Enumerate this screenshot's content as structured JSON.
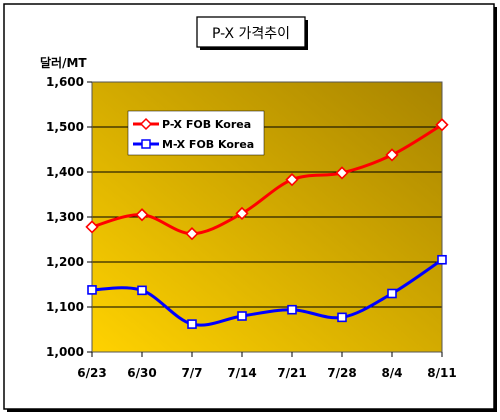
{
  "chart_data": {
    "type": "line",
    "title": "P-X 가격추이",
    "unit_label": "달러/MT",
    "categories": [
      "6/23",
      "6/30",
      "7/7",
      "7/14",
      "7/21",
      "7/28",
      "8/4",
      "8/11"
    ],
    "ylim": [
      1000,
      1600
    ],
    "yticks": [
      1000,
      1100,
      1200,
      1300,
      1400,
      1500,
      1600
    ],
    "ytick_labels": [
      "1,000",
      "1,100",
      "1,200",
      "1,300",
      "1,400",
      "1,500",
      "1,600"
    ],
    "grid": true,
    "legend_position": "top-left",
    "series": [
      {
        "name": "P-X FOB Korea",
        "color": "#ff0000",
        "marker": "diamond",
        "values": [
          1278,
          1305,
          1263,
          1308,
          1383,
          1398,
          1438,
          1505
        ]
      },
      {
        "name": "M-X FOB Korea",
        "color": "#0000ff",
        "marker": "square",
        "values": [
          1138,
          1137,
          1062,
          1080,
          1094,
          1077,
          1130,
          1205
        ]
      }
    ]
  },
  "colors": {
    "plot_gradient_light": "#ffd200",
    "plot_gradient_dark": "#a88400",
    "frame": "#000000",
    "gridline": "#000000"
  }
}
